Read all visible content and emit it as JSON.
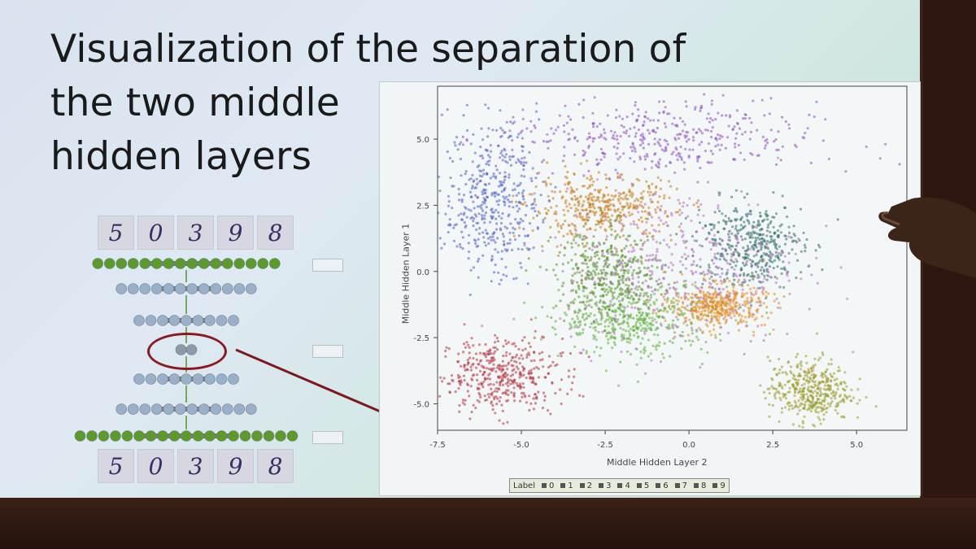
{
  "slide": {
    "title_lines": [
      "Visualization of the separation of",
      "the two middle",
      "hidden layers"
    ]
  },
  "digits": {
    "top": [
      "5",
      "0",
      "3",
      "9",
      "8"
    ],
    "bottom": [
      "5",
      "0",
      "3",
      "9",
      "8"
    ]
  },
  "chart_data": {
    "type": "scatter",
    "xlabel": "Middle Hidden Layer 2",
    "ylabel": "Middle Hidden Layer 1",
    "x_ticks": [
      "-7.5",
      "-5.0",
      "-2.5",
      "0.0",
      "2.5",
      "5.0"
    ],
    "y_ticks": [
      "5.0",
      "2.5",
      "0.0",
      "-2.5",
      "-5.0"
    ],
    "xlim": [
      -7.5,
      6.5
    ],
    "ylim": [
      -6.0,
      7.0
    ],
    "legend_title": "Label",
    "legend": [
      "0",
      "1",
      "2",
      "3",
      "4",
      "5",
      "6",
      "7",
      "8",
      "9"
    ],
    "clusters": [
      {
        "label": "0",
        "color": "#b5303c",
        "cx": -5.6,
        "cy": -3.9,
        "sx": 0.9,
        "sy": 0.7
      },
      {
        "label": "1",
        "color": "#c77a18",
        "cx": -2.6,
        "cy": 2.4,
        "sx": 1.1,
        "sy": 0.6
      },
      {
        "label": "2",
        "color": "#5fb13a",
        "cx": -1.6,
        "cy": -1.8,
        "sx": 1.1,
        "sy": 0.7
      },
      {
        "label": "3",
        "color": "#5a8f2c",
        "cx": -2.4,
        "cy": -0.2,
        "sx": 0.8,
        "sy": 0.9
      },
      {
        "label": "4",
        "color": "#2f6e66",
        "cx": 1.8,
        "cy": 1.0,
        "sx": 0.8,
        "sy": 0.8
      },
      {
        "label": "5",
        "color": "#e08a20",
        "cx": 0.9,
        "cy": -1.3,
        "sx": 0.7,
        "sy": 0.4
      },
      {
        "label": "6",
        "color": "#4a5fc8",
        "cx": -5.9,
        "cy": 2.7,
        "sx": 0.7,
        "sy": 1.4
      },
      {
        "label": "7",
        "color": "#8b4fc4",
        "cx": -1.0,
        "cy": 5.0,
        "sx": 2.4,
        "sy": 0.7
      },
      {
        "label": "8",
        "color": "#b56dc6",
        "cx": -0.2,
        "cy": 0.2,
        "sx": 1.8,
        "sy": 1.5
      },
      {
        "label": "9",
        "color": "#9a9a2a",
        "cx": 3.6,
        "cy": -4.5,
        "sx": 0.6,
        "sy": 0.6
      }
    ]
  }
}
